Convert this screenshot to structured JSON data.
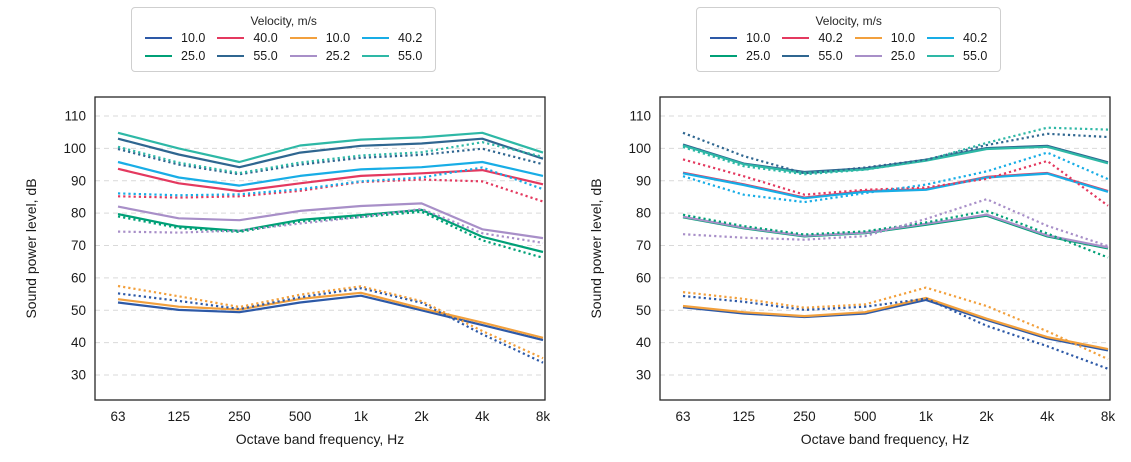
{
  "figure_title": "",
  "chart_data": [
    {
      "type": "line",
      "panel": "left",
      "legend_title": "Velocity, m/s",
      "legend_position": "top",
      "grid": "horizontal-dashed",
      "categories": [
        "63",
        "125",
        "250",
        "500",
        "1k",
        "2k",
        "4k",
        "8k"
      ],
      "xlabel": "Octave band frequency, Hz",
      "ylabel": "Sound power level, dB",
      "ylim": [
        30,
        110
      ],
      "yticks": [
        30,
        40,
        50,
        60,
        70,
        80,
        90,
        100,
        110
      ],
      "legend": [
        {
          "label": "10.0",
          "color": "#2d59a7"
        },
        {
          "label": "25.0",
          "color": "#00a077"
        },
        {
          "label": "40.0",
          "color": "#e4395f"
        },
        {
          "label": "55.0",
          "color": "#2f6690"
        },
        {
          "label": "10.0",
          "color": "#f2a03d"
        },
        {
          "label": "25.2",
          "color": "#a88fc8"
        },
        {
          "label": "40.2",
          "color": "#18ade6"
        },
        {
          "label": "55.0",
          "color": "#2eb8a6"
        }
      ],
      "series": [
        {
          "name": "10.0",
          "color": "#2d59a7",
          "style": "solid",
          "values": [
            52.4,
            50.1,
            49.4,
            52.4,
            54.5,
            50.0,
            45.4,
            40.8
          ]
        },
        {
          "name": "25.0",
          "color": "#00a077",
          "style": "solid",
          "values": [
            79.7,
            75.9,
            74.5,
            77.9,
            79.4,
            81.0,
            72.7,
            68.0
          ]
        },
        {
          "name": "40.0",
          "color": "#e4395f",
          "style": "solid",
          "values": [
            93.7,
            89.2,
            86.8,
            89.2,
            91.5,
            92.3,
            93.3,
            88.9
          ]
        },
        {
          "name": "55.0",
          "color": "#2f6690",
          "style": "solid",
          "values": [
            103.0,
            98.1,
            94.2,
            98.7,
            100.8,
            101.5,
            103.0,
            96.8
          ]
        },
        {
          "name": "10.0",
          "color": "#f2a03d",
          "style": "solid",
          "values": [
            53.4,
            51.1,
            50.2,
            53.5,
            55.4,
            50.6,
            46.2,
            41.5
          ]
        },
        {
          "name": "25.2",
          "color": "#a88fc8",
          "style": "solid",
          "values": [
            82.0,
            78.4,
            77.8,
            80.7,
            82.2,
            83.0,
            75.0,
            72.3
          ]
        },
        {
          "name": "40.2",
          "color": "#18ade6",
          "style": "solid",
          "values": [
            95.8,
            91.0,
            88.5,
            91.5,
            93.5,
            94.2,
            95.8,
            91.5
          ]
        },
        {
          "name": "55.0",
          "color": "#2eb8a6",
          "style": "solid",
          "values": [
            104.8,
            100.0,
            95.8,
            100.9,
            102.7,
            103.4,
            104.8,
            98.7
          ]
        },
        {
          "name": "10.0",
          "color": "#2d59a7",
          "style": "dotted",
          "values": [
            55.2,
            52.9,
            50.4,
            54.0,
            56.8,
            52.3,
            42.6,
            33.8
          ]
        },
        {
          "name": "25.0",
          "color": "#00a077",
          "style": "dotted",
          "values": [
            79.0,
            75.4,
            74.2,
            77.4,
            78.8,
            80.4,
            71.6,
            66.2
          ]
        },
        {
          "name": "40.0",
          "color": "#e4395f",
          "style": "dotted",
          "values": [
            85.2,
            84.8,
            85.2,
            86.9,
            89.6,
            90.4,
            89.8,
            83.6
          ]
        },
        {
          "name": "55.0",
          "color": "#2f6690",
          "style": "dotted",
          "values": [
            99.8,
            95.0,
            92.0,
            95.0,
            97.1,
            98.0,
            99.9,
            95.1
          ]
        },
        {
          "name": "10.0",
          "color": "#f2a03d",
          "style": "dotted",
          "values": [
            57.5,
            54.3,
            51.0,
            54.8,
            57.4,
            52.8,
            43.6,
            35.2
          ]
        },
        {
          "name": "25.2",
          "color": "#a88fc8",
          "style": "dotted",
          "values": [
            74.3,
            74.0,
            74.6,
            76.8,
            78.8,
            81.3,
            73.8,
            70.8
          ]
        },
        {
          "name": "40.2",
          "color": "#18ade6",
          "style": "dotted",
          "values": [
            86.1,
            85.5,
            85.8,
            87.4,
            89.8,
            91.0,
            94.1,
            87.4
          ]
        },
        {
          "name": "55.0",
          "color": "#2eb8a6",
          "style": "dotted",
          "values": [
            100.5,
            95.6,
            92.4,
            95.6,
            97.8,
            98.8,
            101.9,
            97.4
          ]
        }
      ]
    },
    {
      "type": "line",
      "panel": "right",
      "legend_title": "Velocity, m/s",
      "legend_position": "top",
      "grid": "horizontal-dashed",
      "categories": [
        "63",
        "125",
        "250",
        "500",
        "1k",
        "2k",
        "4k",
        "8k"
      ],
      "xlabel": "Octave band frequency, Hz",
      "ylabel": "Sound power level, dB",
      "ylim": [
        30,
        110
      ],
      "yticks": [
        30,
        40,
        50,
        60,
        70,
        80,
        90,
        100,
        110
      ],
      "legend": [
        {
          "label": "10.0",
          "color": "#2d59a7"
        },
        {
          "label": "25.0",
          "color": "#00a077"
        },
        {
          "label": "40.2",
          "color": "#e4395f"
        },
        {
          "label": "55.0",
          "color": "#2f6690"
        },
        {
          "label": "10.0",
          "color": "#f2a03d"
        },
        {
          "label": "25.0",
          "color": "#a88fc8"
        },
        {
          "label": "40.2",
          "color": "#18ade6"
        },
        {
          "label": "55.0",
          "color": "#2eb8a6"
        }
      ],
      "series": [
        {
          "name": "10.0",
          "color": "#2d59a7",
          "style": "solid",
          "values": [
            50.9,
            49.0,
            47.9,
            49.0,
            53.2,
            47.0,
            41.3,
            37.6
          ]
        },
        {
          "name": "25.0",
          "color": "#00a077",
          "style": "solid",
          "values": [
            78.7,
            75.3,
            72.8,
            73.8,
            76.4,
            79.2,
            72.8,
            69.1
          ]
        },
        {
          "name": "40.2",
          "color": "#e4395f",
          "style": "solid",
          "values": [
            92.5,
            88.9,
            84.8,
            86.8,
            87.4,
            91.2,
            92.4,
            86.8
          ]
        },
        {
          "name": "55.0",
          "color": "#2f6690",
          "style": "solid",
          "values": [
            101.2,
            95.3,
            92.7,
            93.8,
            96.5,
            100.1,
            100.8,
            95.7
          ]
        },
        {
          "name": "10.0",
          "color": "#f2a03d",
          "style": "solid",
          "values": [
            51.3,
            49.4,
            48.2,
            49.4,
            53.8,
            47.4,
            41.7,
            38.0
          ]
        },
        {
          "name": "25.0",
          "color": "#a88fc8",
          "style": "solid",
          "values": [
            78.9,
            75.5,
            73.0,
            74.0,
            76.7,
            79.5,
            73.1,
            69.4
          ]
        },
        {
          "name": "40.2",
          "color": "#18ade6",
          "style": "solid",
          "values": [
            92.3,
            88.7,
            84.6,
            86.6,
            87.2,
            91.0,
            92.2,
            86.6
          ]
        },
        {
          "name": "55.0",
          "color": "#2eb8a6",
          "style": "solid",
          "values": [
            100.9,
            95.1,
            92.4,
            93.5,
            96.2,
            99.8,
            100.5,
            95.4
          ]
        },
        {
          "name": "10.0",
          "color": "#2d59a7",
          "style": "dotted",
          "values": [
            54.4,
            52.6,
            50.1,
            51.1,
            53.6,
            45.2,
            38.9,
            31.9
          ]
        },
        {
          "name": "25.0",
          "color": "#00a077",
          "style": "dotted",
          "values": [
            79.5,
            76.0,
            73.4,
            74.4,
            77.1,
            80.7,
            73.7,
            66.3
          ]
        },
        {
          "name": "40.2",
          "color": "#e4395f",
          "style": "dotted",
          "values": [
            96.6,
            91.4,
            85.7,
            87.2,
            87.9,
            90.6,
            96.1,
            82.3
          ]
        },
        {
          "name": "55.0",
          "color": "#2f6690",
          "style": "dotted",
          "values": [
            104.8,
            97.6,
            92.3,
            94.1,
            96.5,
            101.0,
            104.5,
            103.5
          ]
        },
        {
          "name": "10.0",
          "color": "#f2a03d",
          "style": "dotted",
          "values": [
            55.6,
            53.5,
            50.8,
            51.8,
            57.0,
            51.3,
            43.5,
            34.9
          ]
        },
        {
          "name": "25.0",
          "color": "#a88fc8",
          "style": "dotted",
          "values": [
            73.5,
            72.4,
            71.8,
            72.9,
            78.2,
            84.3,
            76.1,
            69.8
          ]
        },
        {
          "name": "40.2",
          "color": "#18ade6",
          "style": "dotted",
          "values": [
            91.4,
            85.7,
            83.4,
            86.2,
            88.8,
            92.9,
            98.7,
            90.5
          ]
        },
        {
          "name": "55.0",
          "color": "#2eb8a6",
          "style": "dotted",
          "values": [
            100.4,
            94.5,
            92.0,
            93.4,
            96.3,
            101.7,
            106.4,
            105.8
          ]
        }
      ]
    }
  ],
  "style": {
    "grid_color": "#d9d9d9",
    "spine_color": "#262626",
    "text_color": "#1a1a1a",
    "legend_border_color": "#cfcfcf",
    "background": "#ffffff"
  }
}
